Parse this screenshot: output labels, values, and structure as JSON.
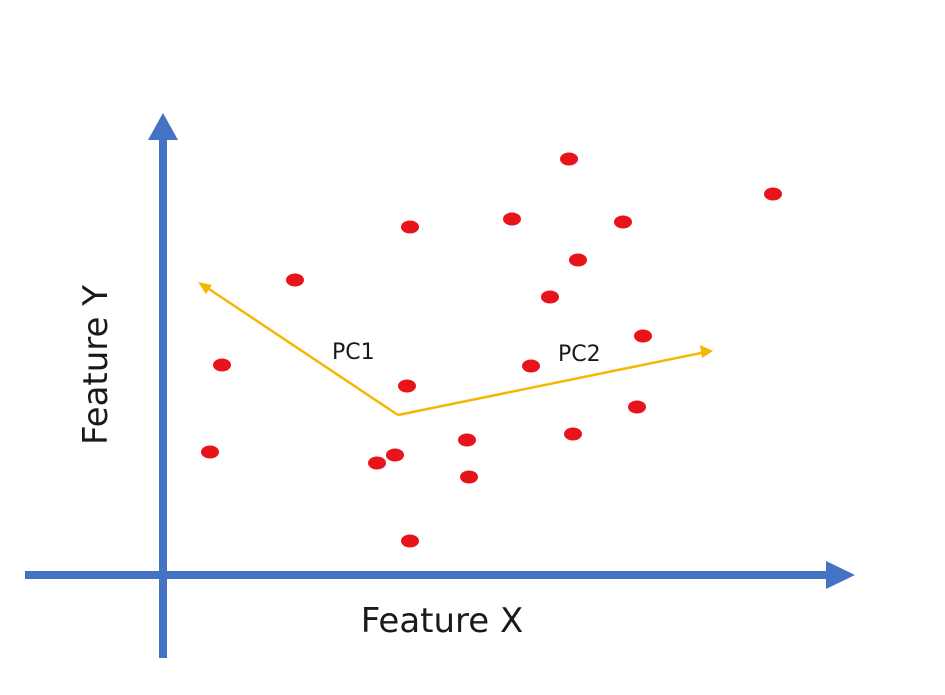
{
  "diagram": {
    "x_axis_label": "Feature X",
    "y_axis_label": "Feature Y",
    "pc1_label": "PC1",
    "pc2_label": "PC2",
    "colors": {
      "axis": "#4472c4",
      "points": "#e8141c",
      "components": "#f5b800",
      "text": "#1a1a1a"
    }
  }
}
